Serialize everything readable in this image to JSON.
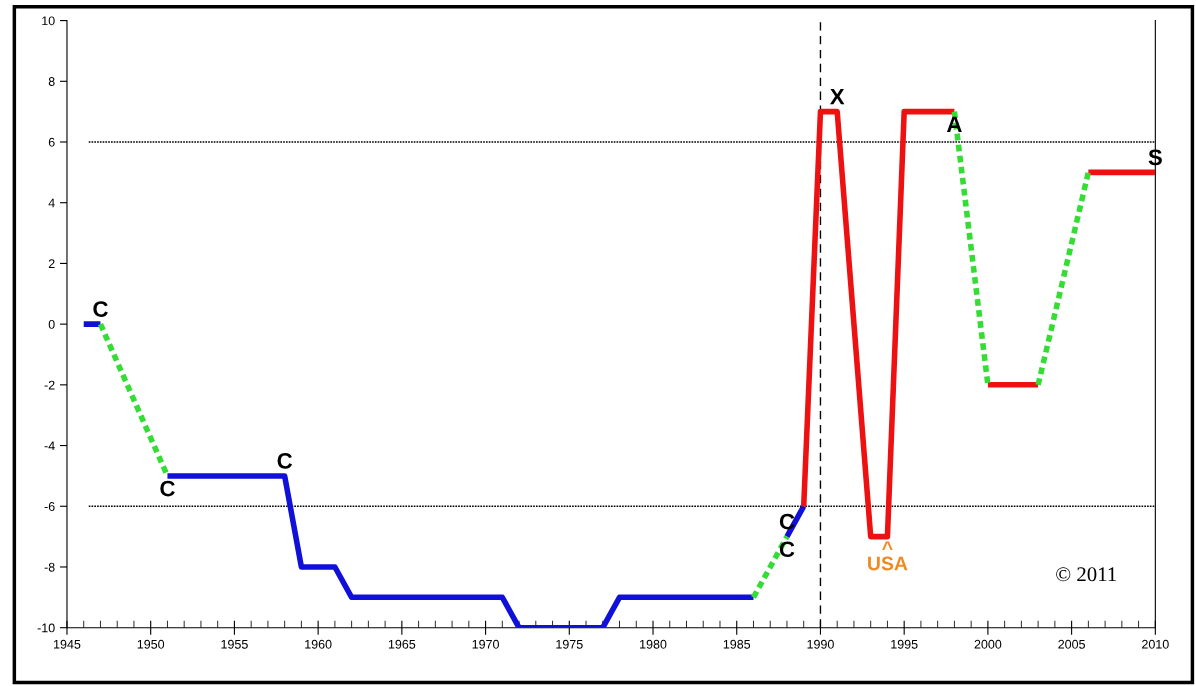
{
  "chart_data": {
    "type": "line",
    "xlim": [
      1945,
      2010
    ],
    "ylim": [
      -10,
      10
    ],
    "xticks": [
      1945,
      1950,
      1955,
      1960,
      1965,
      1970,
      1975,
      1980,
      1985,
      1990,
      1995,
      2000,
      2005,
      2010
    ],
    "yticks": [
      -10,
      -8,
      -6,
      -4,
      -2,
      0,
      2,
      4,
      6,
      8,
      10
    ],
    "grid": false,
    "legend": false,
    "marker": "none",
    "series": [
      {
        "color": "#1010d8",
        "line_style": "solid",
        "x": [
          1946,
          1947,
          null,
          1951,
          1958,
          1959,
          1961,
          1962,
          1971,
          1972,
          1977,
          1978,
          1986,
          null,
          1988,
          1989
        ],
        "values": [
          0,
          0,
          null,
          -5,
          -5,
          -8,
          -8,
          -9,
          -9,
          -10,
          -10,
          -9,
          -9,
          null,
          -7,
          -6
        ]
      },
      {
        "color": "#ee1111",
        "line_style": "solid",
        "x": [
          1989,
          1990,
          1991,
          1993,
          1994,
          1995,
          1998,
          null,
          2000,
          2003,
          null,
          2006,
          2010
        ],
        "values": [
          -6,
          7,
          7,
          -7,
          -7,
          7,
          7,
          null,
          -2,
          -2,
          null,
          5,
          5
        ]
      },
      {
        "color": "#33dd33",
        "line_style": "dotted",
        "x": [
          1947,
          1951,
          null,
          1986,
          1988,
          null,
          1998,
          2000,
          null,
          2003,
          2006
        ],
        "values": [
          0,
          -5,
          null,
          -9,
          -7,
          null,
          7,
          -2,
          null,
          -2,
          5
        ]
      }
    ],
    "ref_lines": [
      {
        "axis": "x",
        "value": 1990,
        "line_style": "dashed",
        "color": "#000000"
      },
      {
        "axis": "y",
        "value": 6,
        "line_style": "dotted",
        "color": "#000000"
      },
      {
        "axis": "y",
        "value": -6,
        "line_style": "dotted",
        "color": "#000000"
      }
    ],
    "annotations": [
      {
        "text": "C",
        "x": 1947,
        "y": 0
      },
      {
        "text": "C",
        "x": 1951,
        "y": -5
      },
      {
        "text": "C",
        "x": 1958,
        "y": -5
      },
      {
        "text": "C",
        "x": 1988,
        "y": -7
      },
      {
        "text": "C",
        "x": 1988,
        "y": -7
      },
      {
        "text": "^\nUSA",
        "x": 1994,
        "y": -7
      },
      {
        "text": "X",
        "x": 1991,
        "y": 7
      },
      {
        "text": "A",
        "x": 1998,
        "y": 7
      },
      {
        "text": "S",
        "x": 2010,
        "y": 5
      },
      "© 2011"
    ]
  }
}
